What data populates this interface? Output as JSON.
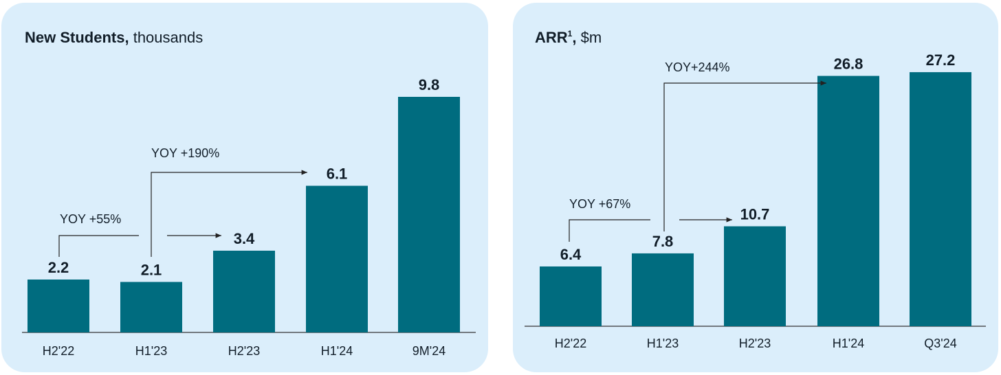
{
  "chart_data": [
    {
      "type": "bar",
      "title_bold": "New Students,",
      "title_rest": "thousands",
      "categories": [
        "H2'22",
        "H1'23",
        "H2'23",
        "H1'24",
        "9M'24"
      ],
      "values": [
        2.2,
        2.1,
        3.4,
        6.1,
        9.8
      ],
      "value_labels": [
        "2.2",
        "2.1",
        "3.4",
        "6.1",
        "9.8"
      ],
      "annotations": [
        "YOY +55%",
        "YOY +190%"
      ]
    },
    {
      "type": "bar",
      "title_bold": "ARR",
      "title_sup": "1",
      "title_comma": ",",
      "title_rest": "$m",
      "categories": [
        "H2'22",
        "H1'23",
        "H2'23",
        "H1'24",
        "Q3'24"
      ],
      "values": [
        6.4,
        7.8,
        10.7,
        26.8,
        27.2
      ],
      "value_labels": [
        "6.4",
        "7.8",
        "10.7",
        "26.8",
        "27.2"
      ],
      "annotations": [
        "YOY +67%",
        "YOY+244%"
      ]
    }
  ],
  "colors": {
    "panel_bg": "#dbeefb",
    "bar": "#006c7f",
    "text": "#111d28"
  }
}
